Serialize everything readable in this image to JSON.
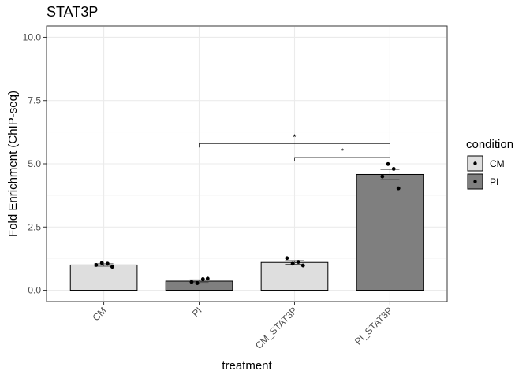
{
  "chart_data": {
    "type": "bar",
    "title": "STAT3P",
    "xlabel": "treatment",
    "ylabel": "Fold Enrichment (ChIP-seq)",
    "ylim": [
      -0.45,
      10.45
    ],
    "yticks": [
      0.0,
      2.5,
      5.0,
      7.5,
      10.0
    ],
    "ytick_labels": [
      "0.0",
      "2.5",
      "5.0",
      "7.5",
      "10.0"
    ],
    "grid": true,
    "categories": [
      "CM",
      "PI",
      "CM_STAT3P",
      "PI_STAT3P"
    ],
    "condition": [
      "CM",
      "PI",
      "CM",
      "PI"
    ],
    "values": [
      1.0,
      0.36,
      1.1,
      4.58
    ],
    "error": [
      0.05,
      0.05,
      0.07,
      0.2
    ],
    "points": [
      [
        1.0,
        1.08,
        1.05,
        0.93
      ],
      [
        0.33,
        0.28,
        0.44,
        0.46
      ],
      [
        1.27,
        1.05,
        1.12,
        0.98
      ],
      [
        4.5,
        4.99,
        4.8,
        4.03
      ]
    ],
    "comparisons": [
      {
        "from": "PI",
        "to": "PI_STAT3P",
        "y": 5.8,
        "label": "*"
      },
      {
        "from": "CM_STAT3P",
        "to": "PI_STAT3P",
        "y": 5.25,
        "label": "*"
      }
    ],
    "legend": {
      "title": "condition",
      "position": "right",
      "items": [
        {
          "label": "CM",
          "color": "#dedede"
        },
        {
          "label": "PI",
          "color": "#7f7f7f"
        }
      ]
    },
    "colors": {
      "CM": "#dedede",
      "PI": "#7f7f7f"
    }
  }
}
